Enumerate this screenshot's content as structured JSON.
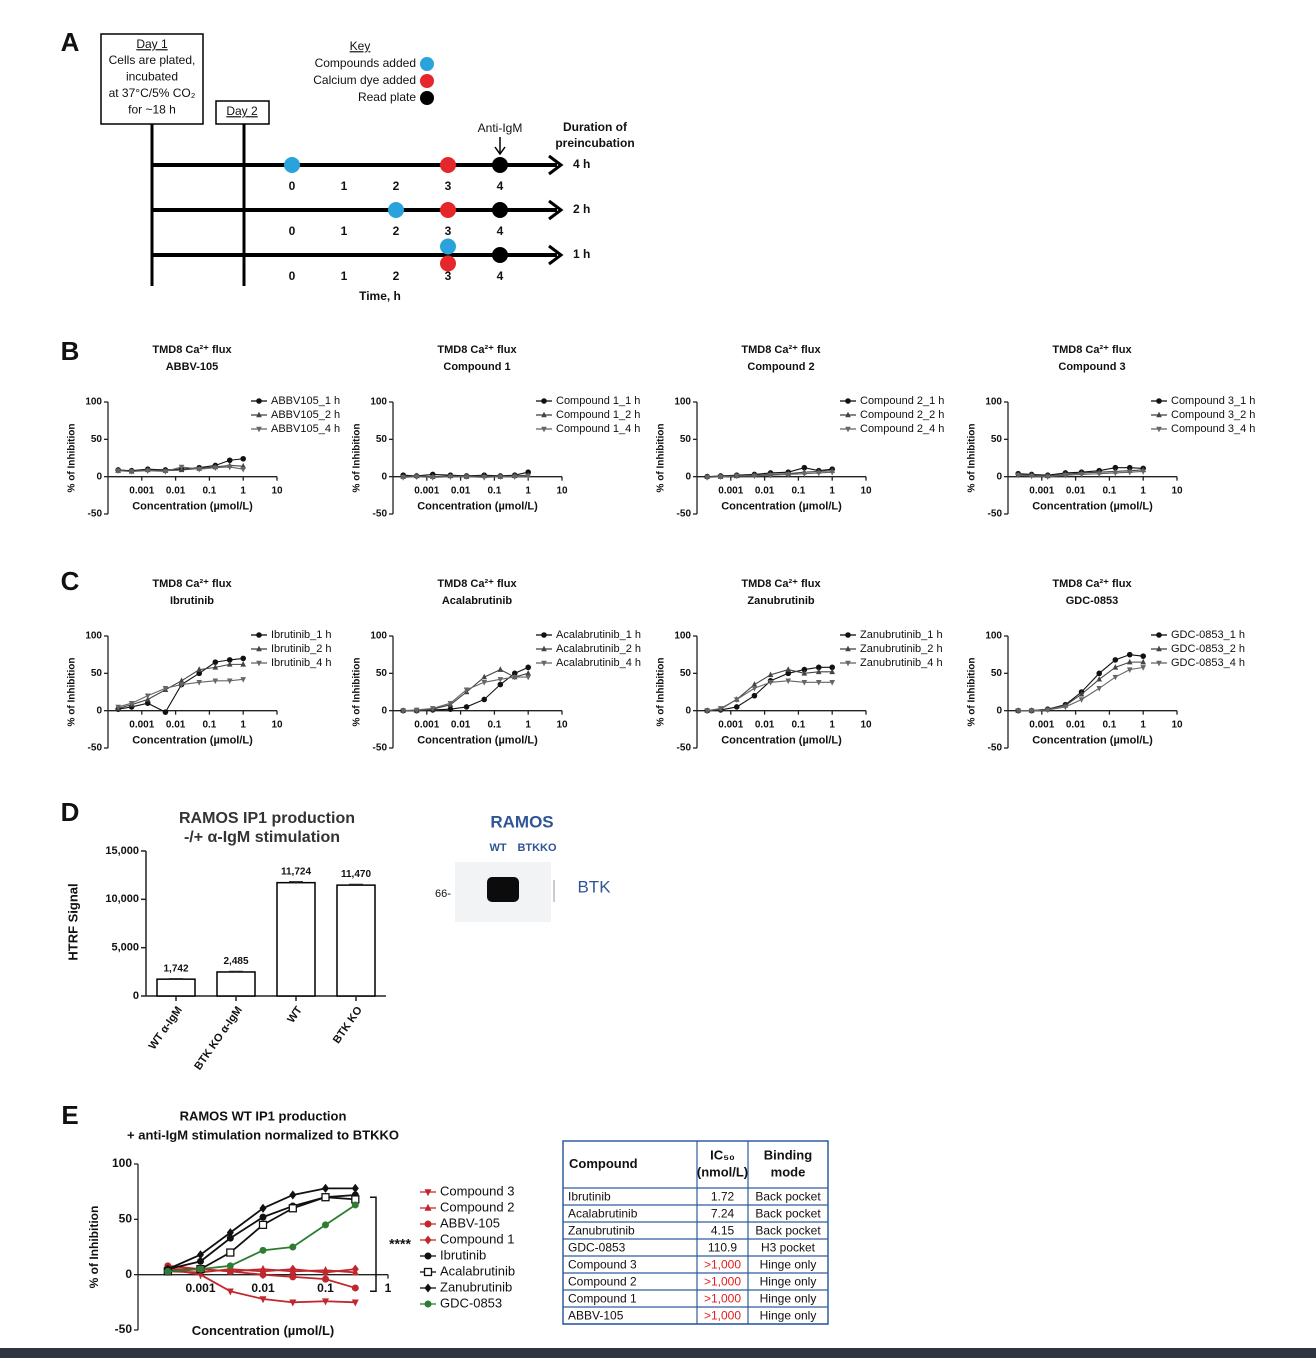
{
  "panel_labels": [
    "A",
    "B",
    "C",
    "D",
    "E"
  ],
  "timeline": {
    "day1": {
      "title": "Day 1",
      "lines": [
        "Cells are plated,",
        "incubated",
        "at 37°C/5% CO₂",
        "for ~18 h"
      ]
    },
    "day2": "Day 2",
    "key": {
      "title": "Key",
      "items": [
        {
          "label": "Compounds added",
          "color": "#2aa3dc"
        },
        {
          "label": "Calcium dye added",
          "color": "#e5262a"
        },
        {
          "label": "Read plate",
          "color": "#000000"
        }
      ]
    },
    "anti_igm": "Anti-IgM",
    "duration_title": [
      "Duration of",
      "preincubation"
    ],
    "time_label": "Time, h",
    "rows": [
      {
        "duration": "4 h",
        "ticks": [
          0,
          1,
          2,
          3,
          4
        ],
        "events": [
          0,
          3,
          4
        ]
      },
      {
        "duration": "2 h",
        "ticks": [
          0,
          1,
          2,
          3,
          4
        ],
        "events": [
          2,
          3,
          4
        ]
      },
      {
        "duration": "1 h",
        "ticks": [
          0,
          1,
          2,
          3,
          4
        ],
        "events": [
          3,
          3,
          4
        ]
      }
    ]
  },
  "chart_data": [
    {
      "type": "line",
      "title": "TMD8 Ca²⁺ flux",
      "subtitle": "ABBV-105",
      "xlabel": "Concentration (µmol/L)",
      "ylabel": "% of Inhibition",
      "xscale": "log",
      "xlim": [
        0.0001,
        10
      ],
      "ylim": [
        -50,
        100
      ],
      "xticks": [
        0.001,
        0.01,
        0.1,
        1,
        10
      ],
      "yticks": [
        -50,
        0,
        50,
        100
      ],
      "x": [
        0.0002,
        0.0005,
        0.0015,
        0.005,
        0.015,
        0.05,
        0.15,
        0.4,
        1
      ],
      "series": [
        {
          "name": "ABBV105_1 h",
          "color": "#111111",
          "marker": "circle",
          "values": [
            9,
            8,
            10,
            9,
            10,
            12,
            15,
            22,
            24
          ]
        },
        {
          "name": "ABBV105_2 h",
          "color": "#444444",
          "marker": "triangle-up",
          "values": [
            8,
            7,
            9,
            8,
            9,
            11,
            13,
            15,
            14
          ]
        },
        {
          "name": "ABBV105_4 h",
          "color": "#666666",
          "marker": "triangle-down",
          "values": [
            8,
            7,
            8,
            7,
            13,
            10,
            12,
            13,
            10
          ]
        }
      ]
    },
    {
      "type": "line",
      "title": "TMD8 Ca²⁺ flux",
      "subtitle": "Compound 1",
      "xlabel": "Concentration (µmol/L)",
      "ylabel": "% of Inhibition",
      "xscale": "log",
      "xlim": [
        0.0001,
        10
      ],
      "ylim": [
        -50,
        100
      ],
      "xticks": [
        0.001,
        0.01,
        0.1,
        1,
        10
      ],
      "yticks": [
        -50,
        0,
        50,
        100
      ],
      "x": [
        0.0002,
        0.0005,
        0.0015,
        0.005,
        0.015,
        0.05,
        0.15,
        0.4,
        1
      ],
      "series": [
        {
          "name": "Compound 1_1 h",
          "color": "#111111",
          "marker": "circle",
          "values": [
            2,
            1,
            3,
            2,
            1,
            2,
            1,
            2,
            6
          ]
        },
        {
          "name": "Compound 1_2 h",
          "color": "#444444",
          "marker": "triangle-up",
          "values": [
            0,
            1,
            0,
            1,
            0,
            1,
            0,
            1,
            2
          ]
        },
        {
          "name": "Compound 1_4 h",
          "color": "#666666",
          "marker": "triangle-down",
          "values": [
            -1,
            0,
            -1,
            0,
            0,
            -1,
            0,
            0,
            1
          ]
        }
      ]
    },
    {
      "type": "line",
      "title": "TMD8 Ca²⁺ flux",
      "subtitle": "Compound 2",
      "xlabel": "Concentration (µmol/L)",
      "ylabel": "% of Inhibition",
      "xscale": "log",
      "xlim": [
        0.0001,
        10
      ],
      "ylim": [
        -50,
        100
      ],
      "xticks": [
        0.001,
        0.01,
        0.1,
        1,
        10
      ],
      "yticks": [
        -50,
        0,
        50,
        100
      ],
      "x": [
        0.0002,
        0.0005,
        0.0015,
        0.005,
        0.015,
        0.05,
        0.15,
        0.4,
        1
      ],
      "series": [
        {
          "name": "Compound 2_1 h",
          "color": "#111111",
          "marker": "circle",
          "values": [
            0,
            1,
            2,
            3,
            5,
            6,
            12,
            8,
            10
          ]
        },
        {
          "name": "Compound 2_2 h",
          "color": "#444444",
          "marker": "triangle-up",
          "values": [
            0,
            0,
            1,
            2,
            3,
            4,
            6,
            7,
            8
          ]
        },
        {
          "name": "Compound 2_4 h",
          "color": "#666666",
          "marker": "triangle-down",
          "values": [
            -1,
            0,
            1,
            1,
            2,
            3,
            4,
            5,
            6
          ]
        }
      ]
    },
    {
      "type": "line",
      "title": "TMD8 Ca²⁺ flux",
      "subtitle": "Compound 3",
      "xlabel": "Concentration (µmol/L)",
      "ylabel": "% of Inhibition",
      "xscale": "log",
      "xlim": [
        0.0001,
        10
      ],
      "ylim": [
        -50,
        100
      ],
      "xticks": [
        0.001,
        0.01,
        0.1,
        1,
        10
      ],
      "yticks": [
        -50,
        0,
        50,
        100
      ],
      "x": [
        0.0002,
        0.0005,
        0.0015,
        0.005,
        0.015,
        0.05,
        0.15,
        0.4,
        1
      ],
      "series": [
        {
          "name": "Compound 3_1 h",
          "color": "#111111",
          "marker": "circle",
          "values": [
            4,
            3,
            2,
            5,
            6,
            8,
            12,
            12,
            11
          ]
        },
        {
          "name": "Compound 3_2 h",
          "color": "#444444",
          "marker": "triangle-up",
          "values": [
            3,
            2,
            1,
            3,
            5,
            6,
            7,
            8,
            9
          ]
        },
        {
          "name": "Compound 3_4 h",
          "color": "#666666",
          "marker": "triangle-down",
          "values": [
            2,
            1,
            0,
            2,
            3,
            4,
            5,
            6,
            7
          ]
        }
      ]
    },
    {
      "type": "line",
      "title": "TMD8 Ca²⁺ flux",
      "subtitle": "Ibrutinib",
      "xlabel": "Concentration (µmol/L)",
      "ylabel": "% of Inhibition",
      "xscale": "log",
      "xlim": [
        0.0001,
        10
      ],
      "ylim": [
        -50,
        100
      ],
      "xticks": [
        0.001,
        0.01,
        0.1,
        1,
        10
      ],
      "yticks": [
        -50,
        0,
        50,
        100
      ],
      "x": [
        0.0002,
        0.0005,
        0.0015,
        0.005,
        0.015,
        0.05,
        0.15,
        0.4,
        1
      ],
      "series": [
        {
          "name": "Ibrutinib_1 h",
          "color": "#111111",
          "marker": "circle",
          "values": [
            2,
            5,
            10,
            -2,
            35,
            50,
            65,
            68,
            70
          ]
        },
        {
          "name": "Ibrutinib_2 h",
          "color": "#444444",
          "marker": "triangle-up",
          "values": [
            3,
            8,
            15,
            28,
            40,
            55,
            58,
            62,
            62
          ]
        },
        {
          "name": "Ibrutinib_4 h",
          "color": "#666666",
          "marker": "triangle-down",
          "values": [
            5,
            10,
            20,
            30,
            35,
            38,
            40,
            40,
            42
          ]
        }
      ]
    },
    {
      "type": "line",
      "title": "TMD8 Ca²⁺ flux",
      "subtitle": "Acalabrutinib",
      "xlabel": "Concentration (µmol/L)",
      "ylabel": "% of Inhibition",
      "xscale": "log",
      "xlim": [
        0.0001,
        10
      ],
      "ylim": [
        -50,
        100
      ],
      "xticks": [
        0.001,
        0.01,
        0.1,
        1,
        10
      ],
      "yticks": [
        -50,
        0,
        50,
        100
      ],
      "x": [
        0.0002,
        0.0005,
        0.0015,
        0.005,
        0.015,
        0.05,
        0.15,
        0.4,
        1
      ],
      "series": [
        {
          "name": "Acalabrutinib_1 h",
          "color": "#111111",
          "marker": "circle",
          "values": [
            0,
            0,
            1,
            2,
            5,
            15,
            35,
            50,
            58
          ]
        },
        {
          "name": "Acalabrutinib_2 h",
          "color": "#444444",
          "marker": "triangle-up",
          "values": [
            0,
            0,
            2,
            8,
            25,
            45,
            55,
            45,
            50
          ]
        },
        {
          "name": "Acalabrutinib_4 h",
          "color": "#666666",
          "marker": "triangle-down",
          "values": [
            0,
            1,
            3,
            10,
            28,
            38,
            42,
            45,
            45
          ]
        }
      ]
    },
    {
      "type": "line",
      "title": "TMD8 Ca²⁺ flux",
      "subtitle": "Zanubrutinib",
      "xlabel": "Concentration (µmol/L)",
      "ylabel": "% of Inhibition",
      "xscale": "log",
      "xlim": [
        0.0001,
        10
      ],
      "ylim": [
        -50,
        100
      ],
      "xticks": [
        0.001,
        0.01,
        0.1,
        1,
        10
      ],
      "yticks": [
        -50,
        0,
        50,
        100
      ],
      "x": [
        0.0002,
        0.0005,
        0.0015,
        0.005,
        0.015,
        0.05,
        0.15,
        0.4,
        1
      ],
      "series": [
        {
          "name": "Zanubrutinib_1 h",
          "color": "#111111",
          "marker": "circle",
          "values": [
            0,
            1,
            5,
            20,
            40,
            50,
            55,
            58,
            58
          ]
        },
        {
          "name": "Zanubrutinib_2 h",
          "color": "#444444",
          "marker": "triangle-up",
          "values": [
            0,
            2,
            15,
            35,
            48,
            55,
            50,
            52,
            52
          ]
        },
        {
          "name": "Zanubrutinib_4 h",
          "color": "#666666",
          "marker": "triangle-down",
          "values": [
            0,
            3,
            15,
            30,
            38,
            40,
            38,
            38,
            38
          ]
        }
      ]
    },
    {
      "type": "line",
      "title": "TMD8 Ca²⁺ flux",
      "subtitle": "GDC-0853",
      "xlabel": "Concentration (µmol/L)",
      "ylabel": "% of Inhibition",
      "xscale": "log",
      "xlim": [
        0.0001,
        10
      ],
      "ylim": [
        -50,
        100
      ],
      "xticks": [
        0.001,
        0.01,
        0.1,
        1,
        10
      ],
      "yticks": [
        -50,
        0,
        50,
        100
      ],
      "x": [
        0.0002,
        0.0005,
        0.0015,
        0.005,
        0.015,
        0.05,
        0.15,
        0.4,
        1
      ],
      "series": [
        {
          "name": "GDC-0853_1 h",
          "color": "#111111",
          "marker": "circle",
          "values": [
            0,
            0,
            2,
            8,
            25,
            50,
            68,
            75,
            73
          ]
        },
        {
          "name": "GDC-0853_2 h",
          "color": "#444444",
          "marker": "triangle-up",
          "values": [
            0,
            0,
            2,
            7,
            22,
            42,
            58,
            65,
            65
          ]
        },
        {
          "name": "GDC-0853_4 h",
          "color": "#666666",
          "marker": "triangle-down",
          "values": [
            0,
            0,
            1,
            5,
            15,
            30,
            45,
            55,
            58
          ]
        }
      ]
    },
    {
      "type": "bar",
      "title": "RAMOS IP1 production",
      "subtitle": "-/+ α-IgM stimulation",
      "ylabel": "HTRF Signal",
      "categories": [
        "WT α-IgM",
        "BTK KO α-IgM",
        "WT",
        "BTK KO"
      ],
      "values": [
        1742,
        2485,
        11724,
        11470
      ],
      "errors": [
        40,
        60,
        90,
        70
      ],
      "value_labels": [
        "1,742",
        "2,485",
        "11,724",
        "11,470"
      ],
      "ylim": [
        0,
        15000
      ],
      "yticks": [
        0,
        {
          "value": 5000,
          "label": "5,000"
        },
        {
          "value": 10000,
          "label": "10,000"
        },
        {
          "value": 15000,
          "label": "15,000"
        }
      ],
      "color": "#ffffff",
      "edge_color": "#000000"
    },
    {
      "type": "line",
      "title": "RAMOS WT IP1 production",
      "subtitle": "+ anti-IgM stimulation normalized to BTKKO",
      "xlabel": "Concentration (µmol/L)",
      "ylabel": "% of Inhibition",
      "xscale": "log",
      "xlim": [
        0.0001,
        1
      ],
      "ylim": [
        -50,
        100
      ],
      "xticks": [
        0.001,
        0.01,
        0.1,
        1
      ],
      "yticks": [
        -50,
        0,
        50,
        100
      ],
      "annotation": "****",
      "x": [
        0.0003,
        0.001,
        0.003,
        0.01,
        0.03,
        0.1,
        0.3
      ],
      "series": [
        {
          "name": "Compound 3",
          "color": "#c0282d",
          "marker": "triangle-down",
          "values": [
            5,
            0,
            -15,
            -22,
            -25,
            -24,
            -25
          ]
        },
        {
          "name": "Compound 2",
          "color": "#c0282d",
          "marker": "triangle-up",
          "values": [
            5,
            5,
            3,
            5,
            3,
            4,
            2
          ]
        },
        {
          "name": "ABBV-105",
          "color": "#c0282d",
          "marker": "circle",
          "values": [
            8,
            5,
            3,
            0,
            -2,
            -4,
            -12
          ]
        },
        {
          "name": "Compound 1",
          "color": "#c0282d",
          "marker": "diamond",
          "values": [
            3,
            2,
            5,
            3,
            5,
            2,
            5
          ]
        },
        {
          "name": "Ibrutinib",
          "color": "#111111",
          "marker": "circle",
          "values": [
            5,
            12,
            33,
            52,
            62,
            70,
            72
          ]
        },
        {
          "name": "Acalabrutinib",
          "color": "#111111",
          "marker": "square-open",
          "values": [
            3,
            5,
            20,
            45,
            60,
            70,
            68
          ]
        },
        {
          "name": "Zanubrutinib",
          "color": "#111111",
          "marker": "diamond",
          "values": [
            5,
            18,
            38,
            60,
            72,
            78,
            78
          ]
        },
        {
          "name": "GDC-0853",
          "color": "#2e7d32",
          "marker": "circle",
          "values": [
            3,
            5,
            8,
            22,
            25,
            45,
            63
          ]
        }
      ]
    }
  ],
  "blot": {
    "title": "RAMOS",
    "lanes": [
      "WT",
      "BTKKO"
    ],
    "size_marker": "66-",
    "protein": "BTK"
  },
  "table": {
    "headers": [
      [
        "Compound"
      ],
      [
        "IC₅₀",
        "(nmol/L)"
      ],
      [
        "Binding",
        "mode"
      ]
    ],
    "flag_color": "#e02020",
    "rows": [
      [
        "Ibrutinib",
        "1.72",
        "Back pocket"
      ],
      [
        "Acalabrutinib",
        "7.24",
        "Back pocket"
      ],
      [
        "Zanubrutinib",
        "4.15",
        "Back pocket"
      ],
      [
        "GDC-0853",
        "110.9",
        "H3 pocket"
      ],
      [
        "Compound 3",
        ">1,000",
        "Hinge only"
      ],
      [
        "Compound 2",
        ">1,000",
        "Hinge only"
      ],
      [
        "Compound 1",
        ">1,000",
        "Hinge only"
      ],
      [
        "ABBV-105",
        ">1,000",
        "Hinge only"
      ]
    ]
  }
}
